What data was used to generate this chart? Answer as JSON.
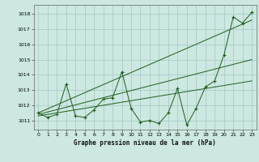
{
  "title": "Graphe pression niveau de la mer (hPa)",
  "bg_color": "#cce8e0",
  "grid_color": "#aacccc",
  "line_color": "#1e5c1e",
  "xlim": [
    -0.5,
    23.5
  ],
  "ylim": [
    1010.4,
    1018.6
  ],
  "yticks": [
    1011,
    1012,
    1013,
    1014,
    1015,
    1016,
    1017,
    1018
  ],
  "xticks": [
    0,
    1,
    2,
    3,
    4,
    5,
    6,
    7,
    8,
    9,
    10,
    11,
    12,
    13,
    14,
    15,
    16,
    17,
    18,
    19,
    20,
    21,
    22,
    23
  ],
  "series": [
    [
      0,
      1011.5
    ],
    [
      1,
      1011.2
    ],
    [
      2,
      1011.4
    ],
    [
      3,
      1013.4
    ],
    [
      4,
      1011.3
    ],
    [
      5,
      1011.2
    ],
    [
      6,
      1011.7
    ],
    [
      7,
      1012.4
    ],
    [
      8,
      1012.5
    ],
    [
      9,
      1014.2
    ],
    [
      10,
      1011.8
    ],
    [
      11,
      1010.9
    ],
    [
      12,
      1011.0
    ],
    [
      13,
      1010.8
    ],
    [
      14,
      1011.5
    ],
    [
      15,
      1013.1
    ],
    [
      16,
      1010.7
    ],
    [
      17,
      1011.8
    ],
    [
      18,
      1013.2
    ],
    [
      19,
      1013.6
    ],
    [
      20,
      1015.3
    ],
    [
      21,
      1017.8
    ],
    [
      22,
      1017.4
    ],
    [
      23,
      1018.1
    ]
  ],
  "trend_lines": [
    [
      [
        0,
        1011.5
      ],
      [
        23,
        1017.6
      ]
    ],
    [
      [
        0,
        1011.4
      ],
      [
        23,
        1015.0
      ]
    ],
    [
      [
        0,
        1011.3
      ],
      [
        23,
        1013.6
      ]
    ]
  ],
  "xlabel_fontsize": 5.5,
  "tick_fontsize": 4.5
}
